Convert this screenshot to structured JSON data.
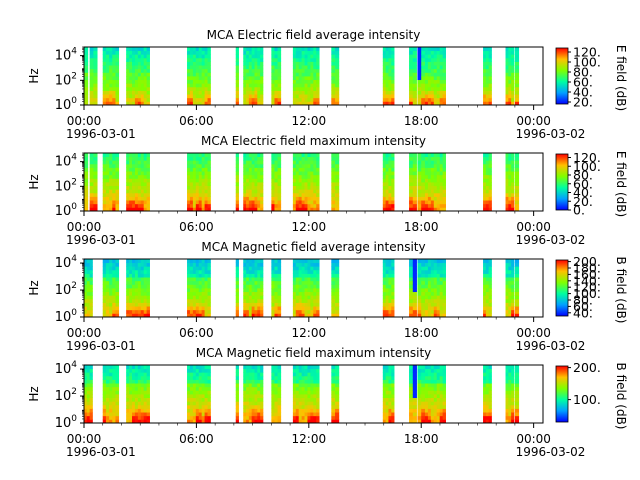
{
  "figure": {
    "x_tick_labels": [
      "00:00",
      "06:00",
      "12:00",
      "18:00",
      "00:00"
    ],
    "x_date_labels": [
      "1996-03-01",
      "1996-03-02"
    ]
  },
  "chart_data": [
    {
      "type": "heatmap",
      "title": "MCA  Electric field average intensity",
      "ylabel": "Hz",
      "y_scale": "log",
      "ylim": [
        1,
        50000
      ],
      "y_ticks": [
        {
          "base": "10",
          "exp": "0"
        },
        {
          "base": "10",
          "exp": "2"
        },
        {
          "base": "10",
          "exp": "4"
        }
      ],
      "x_range": [
        "1996-03-01 00:00",
        "1996-03-02 00:30"
      ],
      "colorbar": {
        "label": "E field (dB)",
        "range": [
          16,
          128
        ],
        "ticks": [
          "120.",
          "100.",
          "80.",
          "60.",
          "40.",
          "20."
        ],
        "tick_values": [
          120,
          100,
          80,
          60,
          40,
          20
        ]
      },
      "colormap": "rainbow",
      "data_intervals_hours": [
        [
          0.0,
          0.2
        ],
        [
          0.3,
          0.7
        ],
        [
          1.0,
          1.85
        ],
        [
          2.25,
          3.5
        ],
        [
          5.5,
          6.75
        ],
        [
          8.1,
          8.25
        ],
        [
          8.5,
          9.55
        ],
        [
          10.0,
          10.5
        ],
        [
          11.15,
          12.55
        ],
        [
          13.2,
          13.6
        ],
        [
          15.95,
          16.55
        ],
        [
          17.35,
          17.75
        ],
        [
          17.8,
          18.2
        ],
        [
          18.2,
          19.3
        ],
        [
          21.3,
          21.75
        ],
        [
          22.5,
          22.95
        ],
        [
          23.0,
          23.2
        ]
      ],
      "dropout_hours": [
        8.35,
        8.45,
        17.25,
        17.8
      ],
      "z_summary": {
        "low_frequency_db": "90-110",
        "mid_frequency_db": "55-75",
        "high_frequency_db": "30-60"
      }
    },
    {
      "type": "heatmap",
      "title": "MCA  Electric field maximum intensity",
      "ylabel": "Hz",
      "y_scale": "log",
      "ylim": [
        1,
        50000
      ],
      "y_ticks": [
        {
          "base": "10",
          "exp": "0"
        },
        {
          "base": "10",
          "exp": "2"
        },
        {
          "base": "10",
          "exp": "4"
        }
      ],
      "x_range": [
        "1996-03-01 00:00",
        "1996-03-02 00:30"
      ],
      "colorbar": {
        "label": "E field (dB)",
        "range": [
          0,
          128
        ],
        "ticks": [
          "120.",
          "100.",
          "80.",
          "60.",
          "40.",
          "20.",
          "0."
        ],
        "tick_values": [
          120,
          100,
          80,
          60,
          40,
          20,
          0
        ]
      },
      "colormap": "rainbow",
      "data_intervals_hours": [
        [
          0.0,
          0.2
        ],
        [
          0.3,
          0.7
        ],
        [
          1.0,
          1.85
        ],
        [
          2.25,
          3.5
        ],
        [
          5.5,
          6.75
        ],
        [
          8.1,
          8.25
        ],
        [
          8.5,
          9.55
        ],
        [
          10.0,
          10.5
        ],
        [
          11.15,
          12.55
        ],
        [
          13.2,
          13.6
        ],
        [
          15.95,
          16.55
        ],
        [
          17.35,
          17.75
        ],
        [
          17.8,
          18.2
        ],
        [
          18.2,
          19.3
        ],
        [
          21.3,
          21.75
        ],
        [
          22.5,
          22.95
        ],
        [
          23.0,
          23.2
        ]
      ],
      "dropout_hours": [
        17.3
      ],
      "z_summary": {
        "low_frequency_db": "100-120",
        "mid_frequency_db": "70-90",
        "high_frequency_db": "60-80"
      }
    },
    {
      "type": "heatmap",
      "title": "MCA  Magnetic field average intensity",
      "ylabel": "Hz",
      "y_scale": "log",
      "ylim": [
        1,
        20000
      ],
      "y_ticks": [
        {
          "base": "10",
          "exp": "0"
        },
        {
          "base": "10",
          "exp": "2"
        },
        {
          "base": "10",
          "exp": "4"
        }
      ],
      "x_range": [
        "1996-03-01 00:00",
        "1996-03-02 00:30"
      ],
      "colorbar": {
        "label": "B field (dB)",
        "range": [
          30,
          205
        ],
        "ticks": [
          "200.",
          "180.",
          "160.",
          "140.",
          "120.",
          "100.",
          "80.",
          "60.",
          "40."
        ],
        "tick_values": [
          200,
          180,
          160,
          140,
          120,
          100,
          80,
          60,
          40
        ]
      },
      "colormap": "rainbow",
      "data_intervals_hours": [
        [
          0.0,
          0.45
        ],
        [
          1.0,
          1.85
        ],
        [
          2.25,
          3.5
        ],
        [
          5.5,
          6.75
        ],
        [
          8.1,
          8.25
        ],
        [
          8.5,
          9.55
        ],
        [
          10.0,
          10.5
        ],
        [
          11.15,
          12.55
        ],
        [
          13.2,
          13.6
        ],
        [
          15.95,
          16.55
        ],
        [
          17.35,
          17.75
        ],
        [
          17.8,
          18.2
        ],
        [
          18.2,
          19.3
        ],
        [
          21.3,
          21.75
        ],
        [
          22.5,
          22.95
        ],
        [
          23.0,
          23.2
        ]
      ],
      "dropout_hours": [
        17.6
      ],
      "z_summary": {
        "low_frequency_db": "140-170",
        "mid_frequency_db": "100-120",
        "high_frequency_db": "70-90"
      }
    },
    {
      "type": "heatmap",
      "title": "MCA  Magnetic field maximum intensity",
      "ylabel": "Hz",
      "y_scale": "log",
      "ylim": [
        1,
        20000
      ],
      "y_ticks": [
        {
          "base": "10",
          "exp": "0"
        },
        {
          "base": "10",
          "exp": "2"
        },
        {
          "base": "10",
          "exp": "4"
        }
      ],
      "x_range": [
        "1996-03-01 00:00",
        "1996-03-02 00:30"
      ],
      "colorbar": {
        "label": "B field (dB)",
        "range": [
          30,
          205
        ],
        "ticks": [
          "200.",
          "100."
        ],
        "tick_values": [
          200,
          100
        ]
      },
      "colormap": "rainbow",
      "data_intervals_hours": [
        [
          0.0,
          0.45
        ],
        [
          1.0,
          1.85
        ],
        [
          2.25,
          3.5
        ],
        [
          5.5,
          6.75
        ],
        [
          8.1,
          8.25
        ],
        [
          8.5,
          9.55
        ],
        [
          10.0,
          10.5
        ],
        [
          11.15,
          12.55
        ],
        [
          13.2,
          13.6
        ],
        [
          15.95,
          16.55
        ],
        [
          17.35,
          17.75
        ],
        [
          17.8,
          18.2
        ],
        [
          18.2,
          19.3
        ],
        [
          21.3,
          21.75
        ],
        [
          22.5,
          22.95
        ],
        [
          23.0,
          23.2
        ]
      ],
      "dropout_hours": [
        17.6
      ],
      "z_summary": {
        "low_frequency_db": "150-180",
        "mid_frequency_db": "110-130",
        "high_frequency_db": "100-120"
      }
    }
  ]
}
